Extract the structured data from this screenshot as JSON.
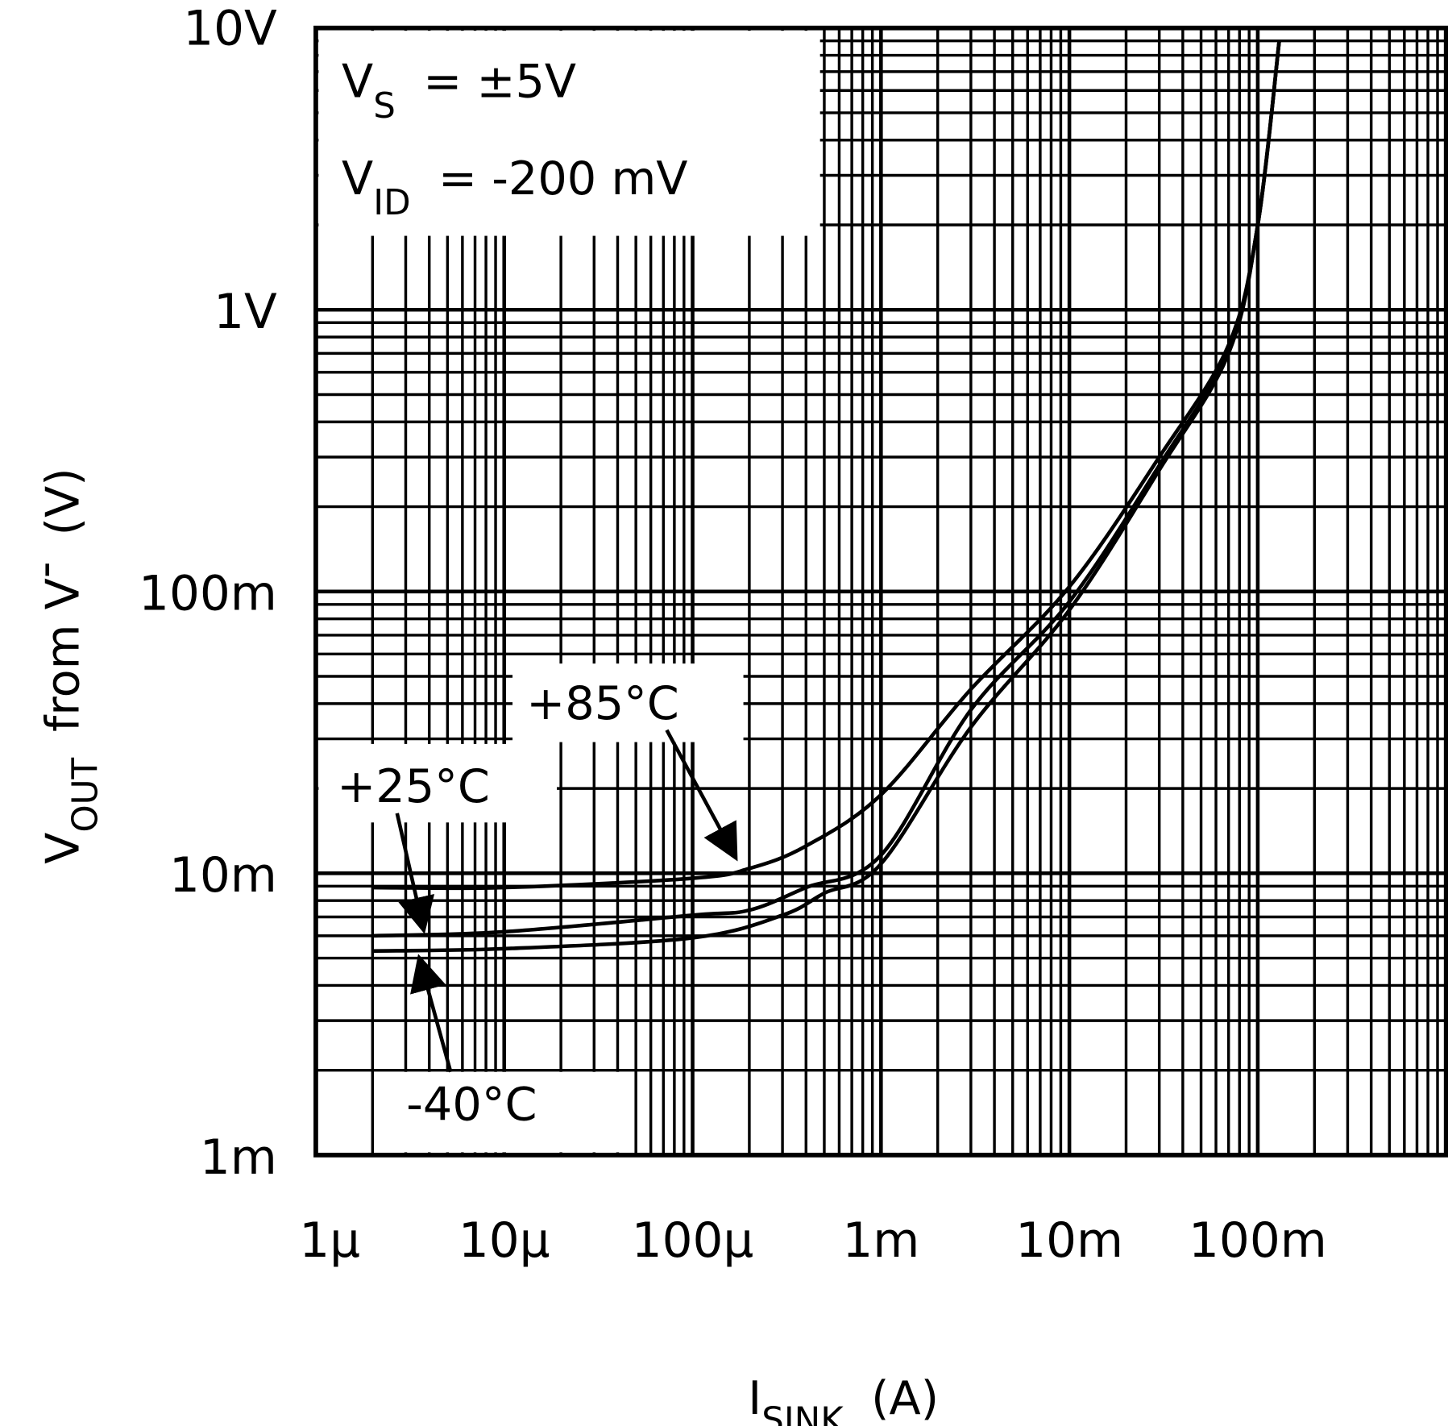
{
  "chart_data": {
    "type": "line",
    "x_scale": "log",
    "y_scale": "log",
    "xlim": [
      1e-06,
      1
    ],
    "ylim": [
      0.001,
      10
    ],
    "grid": true,
    "xlabel": {
      "main": "I",
      "sub": "SINK",
      "unit": "(A)"
    },
    "ylabel": {
      "main": "V",
      "sub": "OUT",
      "rest": "from V",
      "sup": "-",
      "unit": "(V)"
    },
    "x_tick_labels": [
      {
        "value": 1e-06,
        "label": "1μ"
      },
      {
        "value": 1e-05,
        "label": "10μ"
      },
      {
        "value": 0.0001,
        "label": "100μ"
      },
      {
        "value": 0.001,
        "label": "1m"
      },
      {
        "value": 0.01,
        "label": "10m"
      },
      {
        "value": 0.1,
        "label": "100m"
      }
    ],
    "y_tick_labels": [
      {
        "value": 10,
        "label": "10V"
      },
      {
        "value": 1,
        "label": "1V"
      },
      {
        "value": 0.1,
        "label": "100m"
      },
      {
        "value": 0.01,
        "label": "10m"
      },
      {
        "value": 0.001,
        "label": "1m"
      }
    ],
    "conditions": [
      {
        "main": "V",
        "sub": "S",
        "rest": "= ±5V"
      },
      {
        "main": "V",
        "sub": "ID",
        "rest": "= -200 mV"
      }
    ],
    "series": [
      {
        "name": "+85°C",
        "x": [
          2e-06,
          1e-05,
          0.0001,
          0.0002,
          0.0004,
          0.001,
          0.003,
          0.01,
          0.03,
          0.07,
          0.1,
          0.13
        ],
        "y": [
          0.0089,
          0.0089,
          0.0096,
          0.0104,
          0.0125,
          0.019,
          0.045,
          0.104,
          0.3,
          0.75,
          2.0,
          9.0
        ]
      },
      {
        "name": "+25°C",
        "x": [
          2e-06,
          1e-05,
          0.0001,
          0.0002,
          0.0004,
          0.001,
          0.003,
          0.01,
          0.03,
          0.07,
          0.1,
          0.13
        ],
        "y": [
          0.006,
          0.0062,
          0.0071,
          0.0074,
          0.0089,
          0.0116,
          0.038,
          0.092,
          0.28,
          0.72,
          2.0,
          9.0
        ]
      },
      {
        "name": "-40°C",
        "x": [
          2e-06,
          1e-05,
          0.0001,
          0.0003,
          0.0005,
          0.001,
          0.003,
          0.01,
          0.03,
          0.07,
          0.1,
          0.13
        ],
        "y": [
          0.0053,
          0.0054,
          0.0059,
          0.0071,
          0.0085,
          0.0108,
          0.033,
          0.086,
          0.27,
          0.7,
          2.0,
          9.0
        ]
      }
    ]
  }
}
